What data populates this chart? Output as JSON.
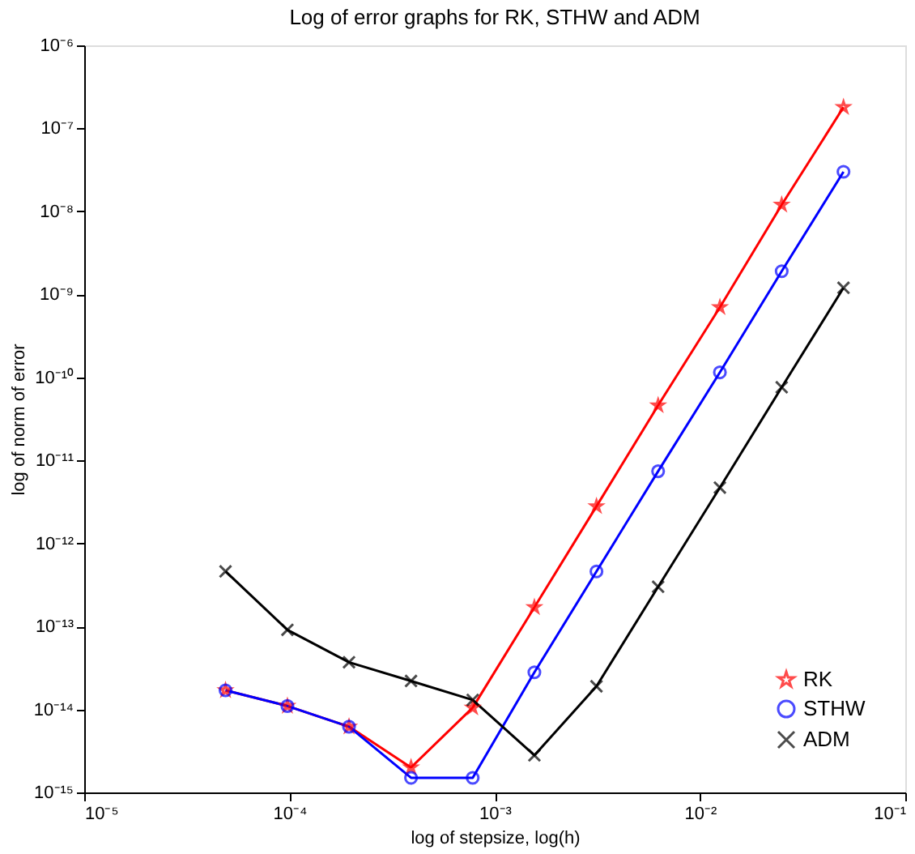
{
  "chart_data": {
    "type": "line",
    "title": "Log of error graphs for RK, STHW and ADM",
    "xlabel": "log of stepsize, log(h)",
    "ylabel": "log of norm of error",
    "x": [
      4.88e-05,
      9.77e-05,
      0.000195,
      0.000391,
      0.000781,
      0.00156,
      0.00313,
      0.00625,
      0.0125,
      0.025,
      0.05
    ],
    "series": [
      {
        "name": "RK",
        "color": "#ff0000",
        "marker": "star",
        "values": [
          1.7e-14,
          1.1e-14,
          6.2e-15,
          2e-15,
          1.05e-14,
          1.7e-13,
          2.8e-12,
          4.6e-11,
          7e-10,
          1.2e-08,
          1.8e-07
        ]
      },
      {
        "name": "STHW",
        "color": "#0000ff",
        "marker": "circle",
        "values": [
          1.7e-14,
          1.1e-14,
          6.2e-15,
          1.5e-15,
          1.5e-15,
          2.8e-14,
          4.6e-13,
          7.4e-12,
          1.15e-10,
          1.9e-09,
          3e-08
        ]
      },
      {
        "name": "ADM",
        "color": "#000000",
        "marker": "cross",
        "values": [
          4.6e-13,
          9.1e-14,
          3.7e-14,
          2.2e-14,
          1.3e-14,
          2.8e-15,
          1.9e-14,
          3e-13,
          4.7e-12,
          7.6e-11,
          1.2e-09
        ]
      }
    ],
    "log": "xy",
    "grid": false,
    "legend": "bottom right",
    "line_style": "solid",
    "xlim": [
      1e-05,
      0.1
    ],
    "ylim": [
      1e-15,
      1e-06
    ],
    "xticks": [
      {
        "value": 1e-05,
        "label": "10⁻⁵"
      },
      {
        "value": 0.0001,
        "label": "10⁻⁴"
      },
      {
        "value": 0.001,
        "label": "10⁻³"
      },
      {
        "value": 0.01,
        "label": "10⁻²"
      },
      {
        "value": 0.1,
        "label": "10⁻¹"
      }
    ],
    "yticks": [
      {
        "value": 1e-15,
        "label": "10⁻¹⁵"
      },
      {
        "value": 1e-14,
        "label": "10⁻¹⁴"
      },
      {
        "value": 1e-13,
        "label": "10⁻¹³"
      },
      {
        "value": 1e-12,
        "label": "10⁻¹²"
      },
      {
        "value": 1e-11,
        "label": "10⁻¹¹"
      },
      {
        "value": 1e-10,
        "label": "10⁻¹⁰"
      },
      {
        "value": 1e-09,
        "label": "10⁻⁹"
      },
      {
        "value": 1e-08,
        "label": "10⁻⁸"
      },
      {
        "value": 1e-07,
        "label": "10⁻⁷"
      },
      {
        "value": 1e-06,
        "label": "10⁻⁶"
      }
    ]
  }
}
